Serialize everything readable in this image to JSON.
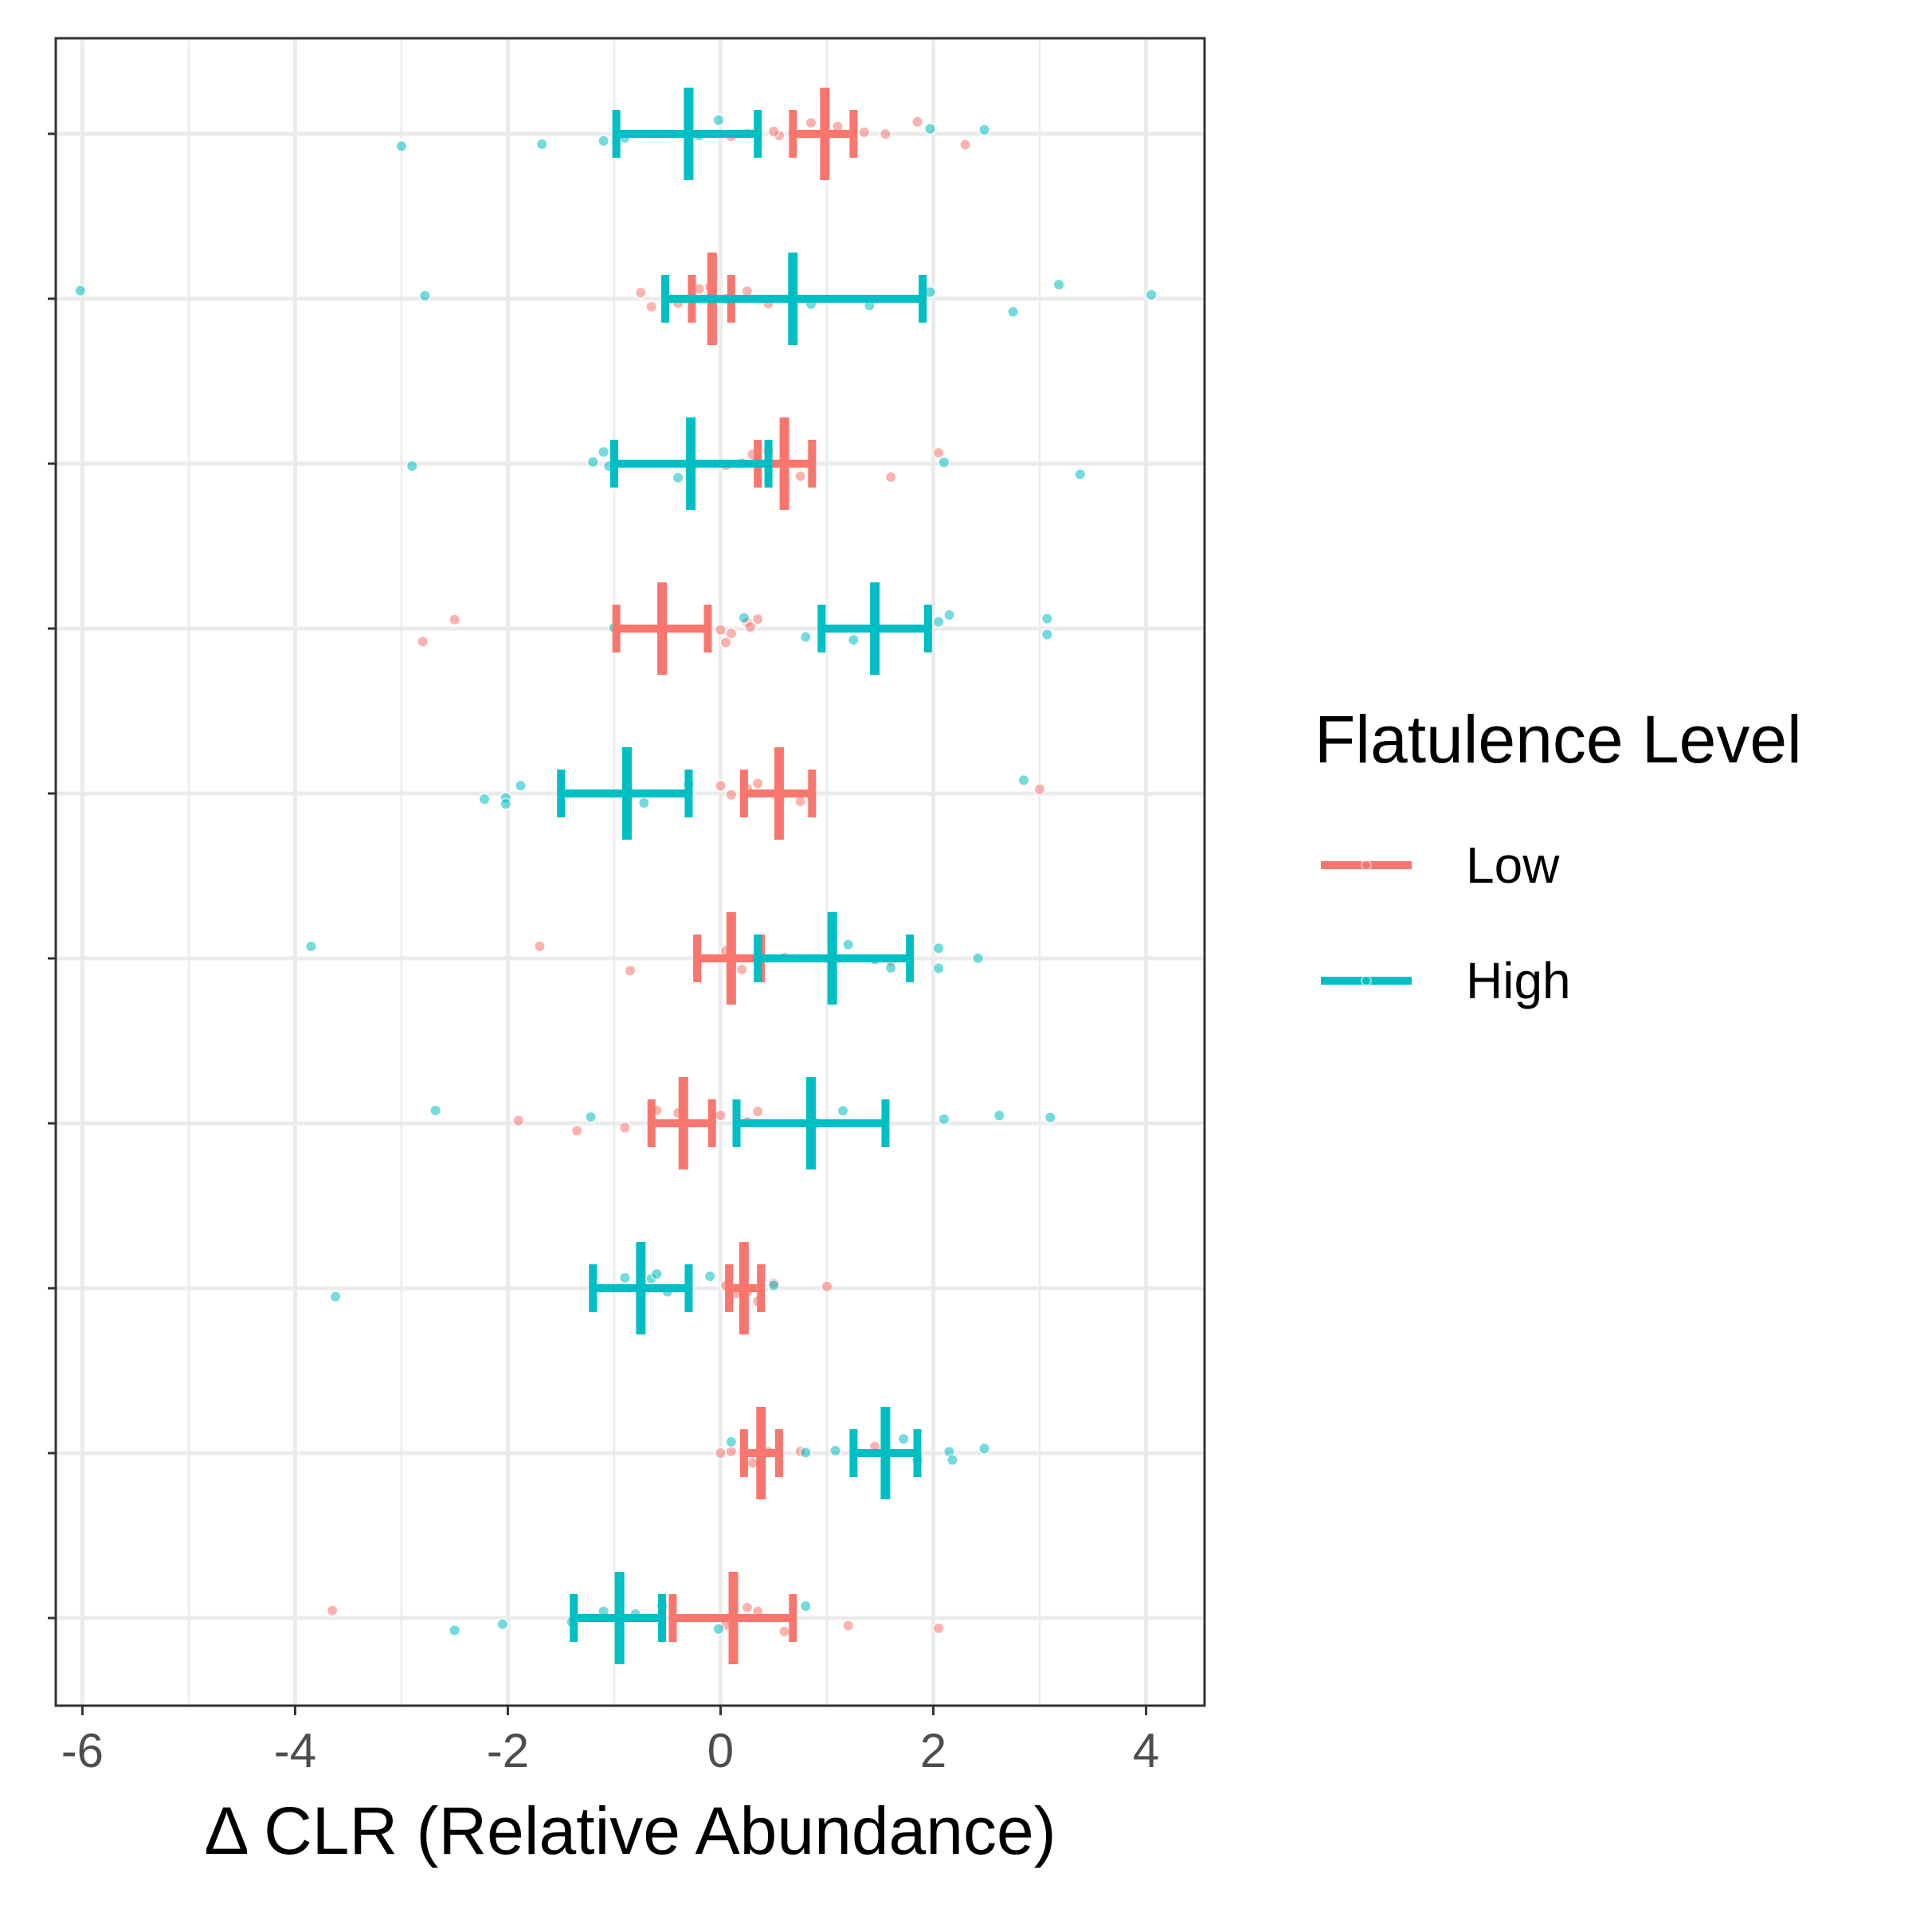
{
  "chart_data": {
    "type": "scatter",
    "xlabel": "Δ CLR (Relative Abundance)",
    "ylabel": "",
    "xlim": [
      -6.25,
      4.55
    ],
    "x_ticks": [
      -6,
      -4,
      -2,
      0,
      2,
      4
    ],
    "x_tick_labels": [
      "-6",
      "-4",
      "-2",
      "0",
      "2",
      "4"
    ],
    "n_rows": 10,
    "grid": true,
    "legend_position": "right",
    "legend": {
      "title": "Flatulence Level",
      "entries": [
        "Low",
        "High"
      ]
    },
    "series": [
      {
        "name": "Low",
        "color": "#F8766D",
        "summary": [
          {
            "row": 1,
            "mean": 0.98,
            "lo": 0.68,
            "hi": 1.25
          },
          {
            "row": 2,
            "mean": -0.08,
            "lo": -0.27,
            "hi": 0.1
          },
          {
            "row": 3,
            "mean": 0.6,
            "lo": 0.35,
            "hi": 0.86
          },
          {
            "row": 4,
            "mean": -0.55,
            "lo": -0.98,
            "hi": -0.12
          },
          {
            "row": 5,
            "mean": 0.55,
            "lo": 0.22,
            "hi": 0.86
          },
          {
            "row": 6,
            "mean": 0.1,
            "lo": -0.22,
            "hi": 0.38
          },
          {
            "row": 7,
            "mean": -0.35,
            "lo": -0.65,
            "hi": -0.08
          },
          {
            "row": 8,
            "mean": 0.22,
            "lo": 0.08,
            "hi": 0.38
          },
          {
            "row": 9,
            "mean": 0.38,
            "lo": 0.22,
            "hi": 0.55
          },
          {
            "row": 10,
            "mean": 0.12,
            "lo": -0.45,
            "hi": 0.68
          }
        ],
        "points": [
          {
            "row": 1,
            "x": 0.25
          },
          {
            "row": 1,
            "x": 0.55
          },
          {
            "row": 1,
            "x": 0.85
          },
          {
            "row": 1,
            "x": 1.1
          },
          {
            "row": 1,
            "x": 1.35
          },
          {
            "row": 1,
            "x": 1.55
          },
          {
            "row": 1,
            "x": 1.85
          },
          {
            "row": 1,
            "x": 2.3
          },
          {
            "row": 1,
            "x": 0.1
          },
          {
            "row": 1,
            "x": 0.5
          },
          {
            "row": 2,
            "x": -0.75
          },
          {
            "row": 2,
            "x": -0.65
          },
          {
            "row": 2,
            "x": -0.4
          },
          {
            "row": 2,
            "x": -0.1
          },
          {
            "row": 2,
            "x": 0.05
          },
          {
            "row": 2,
            "x": 0.25
          },
          {
            "row": 2,
            "x": 0.45
          },
          {
            "row": 2,
            "x": -0.2
          },
          {
            "row": 3,
            "x": 0.05
          },
          {
            "row": 3,
            "x": 0.2
          },
          {
            "row": 3,
            "x": 0.3
          },
          {
            "row": 3,
            "x": 0.45
          },
          {
            "row": 3,
            "x": 0.75
          },
          {
            "row": 3,
            "x": 1.6
          },
          {
            "row": 3,
            "x": 2.05
          },
          {
            "row": 3,
            "x": 0.6
          },
          {
            "row": 4,
            "x": -2.8
          },
          {
            "row": 4,
            "x": -2.5
          },
          {
            "row": 4,
            "x": -0.55
          },
          {
            "row": 4,
            "x": 0.0
          },
          {
            "row": 4,
            "x": 0.1
          },
          {
            "row": 4,
            "x": 0.25
          },
          {
            "row": 4,
            "x": 0.35
          },
          {
            "row": 4,
            "x": 0.05
          },
          {
            "row": 4,
            "x": 0.28
          },
          {
            "row": 5,
            "x": 0.0
          },
          {
            "row": 5,
            "x": 0.1
          },
          {
            "row": 5,
            "x": 0.25
          },
          {
            "row": 5,
            "x": 0.35
          },
          {
            "row": 5,
            "x": 0.75
          },
          {
            "row": 5,
            "x": 3.0
          },
          {
            "row": 5,
            "x": 0.55
          },
          {
            "row": 6,
            "x": -1.7
          },
          {
            "row": 6,
            "x": -0.85
          },
          {
            "row": 6,
            "x": 0.05
          },
          {
            "row": 6,
            "x": 0.2
          },
          {
            "row": 6,
            "x": 0.6
          },
          {
            "row": 6,
            "x": 1.05
          },
          {
            "row": 6,
            "x": 1.6
          },
          {
            "row": 7,
            "x": -1.9
          },
          {
            "row": 7,
            "x": -1.35
          },
          {
            "row": 7,
            "x": -0.9
          },
          {
            "row": 7,
            "x": -0.4
          },
          {
            "row": 7,
            "x": 0.0
          },
          {
            "row": 7,
            "x": 0.25
          },
          {
            "row": 7,
            "x": 0.35
          },
          {
            "row": 7,
            "x": -0.6
          },
          {
            "row": 8,
            "x": 0.05
          },
          {
            "row": 8,
            "x": 0.15
          },
          {
            "row": 8,
            "x": 0.25
          },
          {
            "row": 8,
            "x": 0.35
          },
          {
            "row": 8,
            "x": 0.5
          },
          {
            "row": 8,
            "x": 1.0
          },
          {
            "row": 9,
            "x": 0.0
          },
          {
            "row": 9,
            "x": 0.1
          },
          {
            "row": 9,
            "x": 0.3
          },
          {
            "row": 9,
            "x": 0.45
          },
          {
            "row": 9,
            "x": 0.75
          },
          {
            "row": 9,
            "x": 1.45
          },
          {
            "row": 10,
            "x": -3.65
          },
          {
            "row": 10,
            "x": 0.05
          },
          {
            "row": 10,
            "x": 0.25
          },
          {
            "row": 10,
            "x": 0.35
          },
          {
            "row": 10,
            "x": 1.2
          },
          {
            "row": 10,
            "x": 2.05
          },
          {
            "row": 10,
            "x": 0.6
          }
        ]
      },
      {
        "name": "High",
        "color": "#00BFC4",
        "summary": [
          {
            "row": 1,
            "mean": -0.3,
            "lo": -0.98,
            "hi": 0.35
          },
          {
            "row": 2,
            "mean": 0.68,
            "lo": -0.52,
            "hi": 1.9
          },
          {
            "row": 3,
            "mean": -0.28,
            "lo": -1.0,
            "hi": 0.45
          },
          {
            "row": 4,
            "mean": 1.45,
            "lo": 0.95,
            "hi": 1.95
          },
          {
            "row": 5,
            "mean": -0.88,
            "lo": -1.5,
            "hi": -0.3
          },
          {
            "row": 6,
            "mean": 1.05,
            "lo": 0.35,
            "hi": 1.78
          },
          {
            "row": 7,
            "mean": 0.85,
            "lo": 0.15,
            "hi": 1.55
          },
          {
            "row": 8,
            "mean": -0.75,
            "lo": -1.2,
            "hi": -0.3
          },
          {
            "row": 9,
            "mean": 1.55,
            "lo": 1.25,
            "hi": 1.85
          },
          {
            "row": 10,
            "mean": -0.95,
            "lo": -1.38,
            "hi": -0.55
          }
        ],
        "points": [
          {
            "row": 1,
            "x": -3.0
          },
          {
            "row": 1,
            "x": -1.68
          },
          {
            "row": 1,
            "x": -1.1
          },
          {
            "row": 1,
            "x": -0.9
          },
          {
            "row": 1,
            "x": -0.2
          },
          {
            "row": 1,
            "x": -0.02
          },
          {
            "row": 1,
            "x": 1.97
          },
          {
            "row": 1,
            "x": 2.48
          },
          {
            "row": 2,
            "x": -6.02
          },
          {
            "row": 2,
            "x": -2.78
          },
          {
            "row": 2,
            "x": 0.85
          },
          {
            "row": 2,
            "x": 1.4
          },
          {
            "row": 2,
            "x": 1.97
          },
          {
            "row": 2,
            "x": 2.75
          },
          {
            "row": 2,
            "x": 3.18
          },
          {
            "row": 2,
            "x": 4.05
          },
          {
            "row": 3,
            "x": -2.9
          },
          {
            "row": 3,
            "x": -1.2
          },
          {
            "row": 3,
            "x": -1.1
          },
          {
            "row": 3,
            "x": -0.4
          },
          {
            "row": 3,
            "x": 2.1
          },
          {
            "row": 3,
            "x": 3.38
          },
          {
            "row": 3,
            "x": -1.05
          },
          {
            "row": 4,
            "x": -1.0
          },
          {
            "row": 4,
            "x": 0.22
          },
          {
            "row": 4,
            "x": 0.8
          },
          {
            "row": 4,
            "x": 1.25
          },
          {
            "row": 4,
            "x": 2.05
          },
          {
            "row": 4,
            "x": 2.15
          },
          {
            "row": 4,
            "x": 3.07
          },
          {
            "row": 4,
            "x": 3.07
          },
          {
            "row": 5,
            "x": -2.22
          },
          {
            "row": 5,
            "x": -2.02
          },
          {
            "row": 5,
            "x": -2.02
          },
          {
            "row": 5,
            "x": -1.88
          },
          {
            "row": 5,
            "x": -0.72
          },
          {
            "row": 5,
            "x": -0.3
          },
          {
            "row": 5,
            "x": 2.85
          },
          {
            "row": 6,
            "x": -3.85
          },
          {
            "row": 6,
            "x": 1.2
          },
          {
            "row": 6,
            "x": 1.45
          },
          {
            "row": 6,
            "x": 1.6
          },
          {
            "row": 6,
            "x": 2.05
          },
          {
            "row": 6,
            "x": 2.05
          },
          {
            "row": 6,
            "x": 2.42
          },
          {
            "row": 7,
            "x": -2.68
          },
          {
            "row": 7,
            "x": -1.22
          },
          {
            "row": 7,
            "x": 0.9
          },
          {
            "row": 7,
            "x": 1.15
          },
          {
            "row": 7,
            "x": 2.1
          },
          {
            "row": 7,
            "x": 2.62
          },
          {
            "row": 7,
            "x": 3.1
          },
          {
            "row": 8,
            "x": -3.62
          },
          {
            "row": 8,
            "x": -0.9
          },
          {
            "row": 8,
            "x": -0.65
          },
          {
            "row": 8,
            "x": -0.6
          },
          {
            "row": 8,
            "x": -0.5
          },
          {
            "row": 8,
            "x": -0.1
          },
          {
            "row": 8,
            "x": 0.5
          },
          {
            "row": 9,
            "x": 0.1
          },
          {
            "row": 9,
            "x": 0.8
          },
          {
            "row": 9,
            "x": 1.08
          },
          {
            "row": 9,
            "x": 1.72
          },
          {
            "row": 9,
            "x": 1.85
          },
          {
            "row": 9,
            "x": 2.15
          },
          {
            "row": 9,
            "x": 2.18
          },
          {
            "row": 9,
            "x": 2.48
          },
          {
            "row": 10,
            "x": -2.5
          },
          {
            "row": 10,
            "x": -2.05
          },
          {
            "row": 10,
            "x": -1.4
          },
          {
            "row": 10,
            "x": -1.1
          },
          {
            "row": 10,
            "x": -0.8
          },
          {
            "row": 10,
            "x": -0.55
          },
          {
            "row": 10,
            "x": -0.02
          },
          {
            "row": 10,
            "x": 0.8
          }
        ]
      }
    ]
  }
}
